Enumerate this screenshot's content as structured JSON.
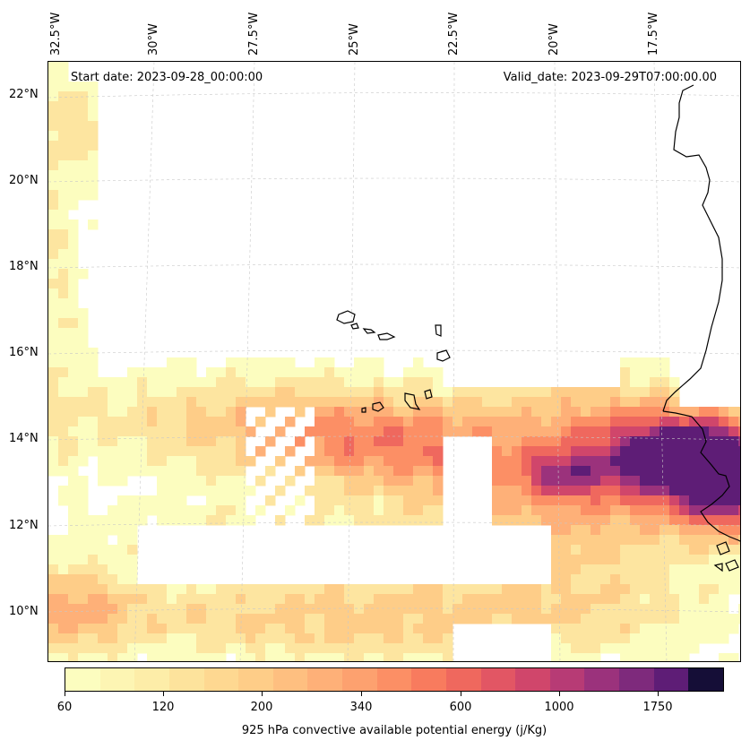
{
  "header": {
    "start_date": "Start date: 2023-09-28_00:00:00",
    "valid_date": "Valid_date: 2023-09-29T07:00:00.00"
  },
  "axes": {
    "longitude_labels": [
      "32.5°W",
      "30°W",
      "27.5°W",
      "25°W",
      "22.5°W",
      "20°W",
      "17.5°W"
    ],
    "latitude_labels": [
      "22°N",
      "20°N",
      "18°N",
      "16°N",
      "14°N",
      "12°N",
      "10°N"
    ]
  },
  "colorbar": {
    "title": "925 hPa convective available potential energy (j/Kg)",
    "tick_labels": [
      "60",
      "120",
      "200",
      "340",
      "600",
      "1000",
      "1750"
    ],
    "colors": [
      "#fcfdbf",
      "#fdf5b3",
      "#fdeda8",
      "#fde39c",
      "#fed891",
      "#fecd88",
      "#febf80",
      "#feb078",
      "#fda16f",
      "#fc8f65",
      "#f87b5e",
      "#ef685e",
      "#e25664",
      "#d0466b",
      "#b73b75",
      "#9b327c",
      "#7e2a7c",
      "#5e1d76",
      "#150e37"
    ]
  },
  "map": {
    "extent": {
      "lon_min": -33.0,
      "lon_max": -15.0,
      "lat_min": 8.8,
      "lat_max": 22.8
    },
    "palette": [
      "#fcfdbf",
      "#fde5a0",
      "#fecd88",
      "#feb078",
      "#fc8f65",
      "#ef685e",
      "#d0466b",
      "#9b327c",
      "#5e1d76"
    ]
  }
}
